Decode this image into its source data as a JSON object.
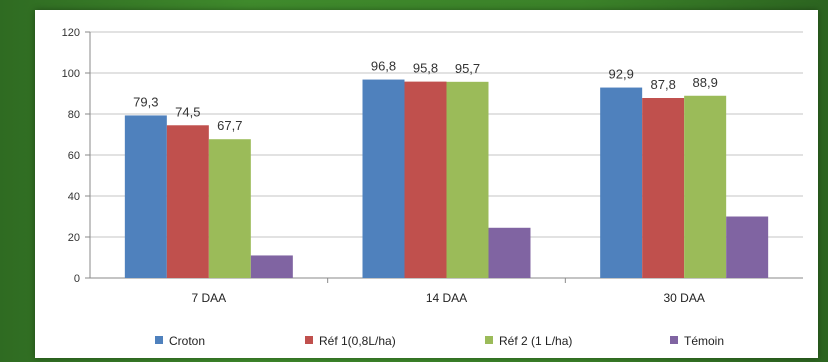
{
  "chart_data": {
    "type": "bar",
    "categories": [
      "7 DAA",
      "14 DAA",
      "30 DAA"
    ],
    "series": [
      {
        "name": "Croton",
        "values": [
          79.3,
          96.8,
          92.9
        ],
        "labels": [
          "79,3",
          "96,8",
          "92,9"
        ],
        "color": "#4f81bd"
      },
      {
        "name": "Réf 1(0,8L/ha)",
        "values": [
          74.5,
          95.8,
          87.8
        ],
        "labels": [
          "74,5",
          "95,8",
          "87,8"
        ],
        "color": "#c0504d"
      },
      {
        "name": "Réf 2 (1 L/ha)",
        "values": [
          67.7,
          95.7,
          88.9
        ],
        "labels": [
          "67,7",
          "95,7",
          "88,9"
        ],
        "color": "#9bbb59"
      },
      {
        "name": "Témoin",
        "values": [
          11,
          24.5,
          30
        ],
        "labels": [
          "",
          "",
          ""
        ],
        "color": "#8064a2"
      }
    ],
    "ylim": [
      0,
      120
    ],
    "yticks": [
      0,
      20,
      40,
      60,
      80,
      100,
      120
    ],
    "grid": true,
    "legend_position": "bottom"
  }
}
